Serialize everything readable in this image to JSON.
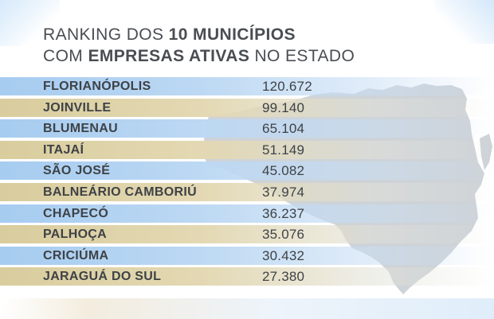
{
  "title": {
    "line1_regular": "RANKING DOS ",
    "line1_bold": "10 MUNICÍPIOS",
    "line2_regular_a": "COM ",
    "line2_bold": "EMPRESAS ATIVAS",
    "line2_regular_b": " NO ESTADO"
  },
  "ranking": [
    {
      "city": "FLORIANÓPOLIS",
      "value": "120.672"
    },
    {
      "city": "JOINVILLE",
      "value": "99.140"
    },
    {
      "city": "BLUMENAU",
      "value": "65.104"
    },
    {
      "city": "ITAJAÍ",
      "value": "51.149"
    },
    {
      "city": "SÃO JOSÉ",
      "value": "45.082"
    },
    {
      "city": "BALNEÁRIO CAMBORIÚ",
      "value": "37.974"
    },
    {
      "city": "CHAPECÓ",
      "value": "36.237"
    },
    {
      "city": "PALHOÇA",
      "value": "35.076"
    },
    {
      "city": "CRICIÚMA",
      "value": "30.432"
    },
    {
      "city": "JARAGUÁ DO SUL",
      "value": "27.380"
    }
  ],
  "colors": {
    "row_blue": "#a6ccf0",
    "row_sand": "#d9cd9e",
    "text": "#3e4246",
    "map": "#c3c9cf"
  }
}
